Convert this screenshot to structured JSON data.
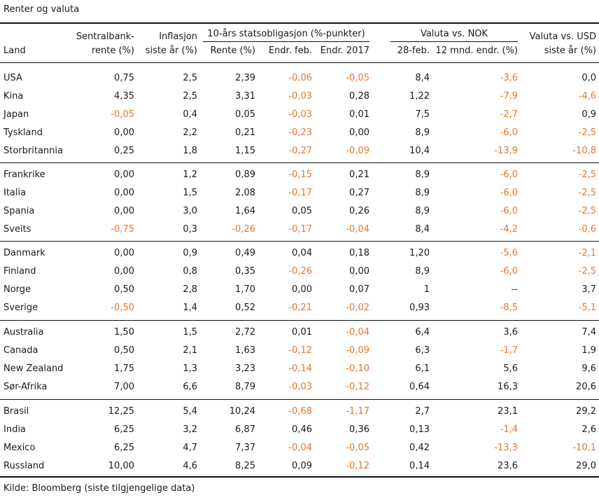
{
  "title": "Renter og valuta",
  "header": {
    "land": "Land",
    "sentralbank_line1": "Sentralbank-",
    "sentralbank_line2": "rente (%)",
    "inflasjon_line1": "Inflasjon",
    "inflasjon_line2": "siste år (%)",
    "statsobl_group": "10-års statsobligasjon (%-punkter)",
    "rente": "Rente (%)",
    "endr_feb": "Endr. feb.",
    "endr_2017": "Endr. 2017",
    "valuta_nok_group": "Valuta vs. NOK",
    "feb28": "28-feb.",
    "mnd12": "12 mnd. endr. (%)",
    "valuta_usd_line1": "Valuta vs. USD",
    "valuta_usd_line2": "siste år (%)"
  },
  "accent_color": "#e8752d",
  "rows": [
    [
      "USA",
      "0,75",
      "2,5",
      "2,39",
      "-0,06",
      "-0,05",
      "8,4",
      "-3,6",
      "0,0"
    ],
    [
      "Kina",
      "4,35",
      "2,5",
      "3,31",
      "-0,03",
      "0,28",
      "1,22",
      "-7,9",
      "-4,6"
    ],
    [
      "Japan",
      "-0,05",
      "0,4",
      "0,05",
      "-0,03",
      "0,01",
      "7,5",
      "-2,7",
      "0,9"
    ],
    [
      "Tyskland",
      "0,00",
      "2,2",
      "0,21",
      "-0,23",
      "0,00",
      "8,9",
      "-6,0",
      "-2,5"
    ],
    [
      "Storbritannia",
      "0,25",
      "1,8",
      "1,15",
      "-0,27",
      "-0,09",
      "10,4",
      "-13,9",
      "-10,8"
    ],
    [
      "Frankrike",
      "0,00",
      "1,2",
      "0,89",
      "-0,15",
      "0,21",
      "8,9",
      "-6,0",
      "-2,5"
    ],
    [
      "Italia",
      "0,00",
      "1,5",
      "2,08",
      "-0,17",
      "0,27",
      "8,9",
      "-6,0",
      "-2,5"
    ],
    [
      "Spania",
      "0,00",
      "3,0",
      "1,64",
      "0,05",
      "0,26",
      "8,9",
      "-6,0",
      "-2,5"
    ],
    [
      "Sveits",
      "-0,75",
      "0,3",
      "-0,26",
      "-0,17",
      "-0,04",
      "8,4",
      "-4,2",
      "-0,6"
    ],
    [
      "Danmark",
      "0,00",
      "0,9",
      "0,49",
      "0,04",
      "0,18",
      "1,20",
      "-5,6",
      "-2,1"
    ],
    [
      "Finland",
      "0,00",
      "0,8",
      "0,35",
      "-0,26",
      "0,00",
      "8,9",
      "-6,0",
      "-2,5"
    ],
    [
      "Norge",
      "0,50",
      "2,8",
      "1,70",
      "0,00",
      "0,07",
      "1",
      "--",
      "3,7"
    ],
    [
      "Sverige",
      "-0,50",
      "1,4",
      "0,52",
      "-0,21",
      "-0,02",
      "0,93",
      "-8,5",
      "-5,1"
    ],
    [
      "Australia",
      "1,50",
      "1,5",
      "2,72",
      "0,01",
      "-0,04",
      "6,4",
      "3,6",
      "7,4"
    ],
    [
      "Canada",
      "0,50",
      "2,1",
      "1,63",
      "-0,12",
      "-0,09",
      "6,3",
      "-1,7",
      "1,9"
    ],
    [
      "New Zealand",
      "1,75",
      "1,3",
      "3,23",
      "-0,14",
      "-0,10",
      "6,1",
      "5,6",
      "9,6"
    ],
    [
      "Sør-Afrika",
      "7,00",
      "6,6",
      "8,79",
      "-0,03",
      "-0,12",
      "0,64",
      "16,3",
      "20,6"
    ],
    [
      "Brasil",
      "12,25",
      "5,4",
      "10,24",
      "-0,68",
      "-1,17",
      "2,7",
      "23,1",
      "29,2"
    ],
    [
      "India",
      "6,25",
      "3,2",
      "6,87",
      "0,46",
      "0,36",
      "0,13",
      "-1,4",
      "2,6"
    ],
    [
      "Mexico",
      "6,25",
      "4,7",
      "7,37",
      "-0,04",
      "-0,05",
      "0,42",
      "-13,3",
      "-10,1"
    ],
    [
      "Russland",
      "10,00",
      "4,6",
      "8,25",
      "0,09",
      "-0,12",
      "0,14",
      "23,6",
      "29,0"
    ]
  ],
  "source": "Kilde: Bloomberg (siste tilgjengelige data)"
}
